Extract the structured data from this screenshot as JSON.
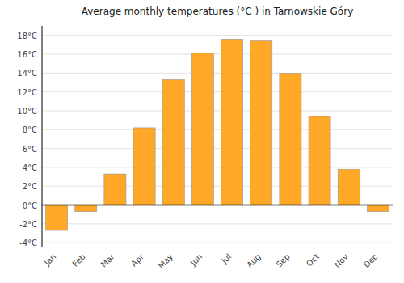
{
  "chart_data": {
    "type": "bar",
    "title": "Average monthly temperatures (°C ) in Tarnowskie Góry",
    "categories": [
      "Jan",
      "Feb",
      "Mar",
      "Apr",
      "May",
      "Jun",
      "Jul",
      "Aug",
      "Sep",
      "Oct",
      "Nov",
      "Dec"
    ],
    "values": [
      -2.7,
      -0.7,
      3.3,
      8.2,
      13.3,
      16.1,
      17.6,
      17.4,
      14.0,
      9.4,
      3.8,
      -0.7
    ],
    "color": "#FFA726",
    "ylim": [
      -4.5,
      19
    ],
    "yticks": [
      {
        "value": -4,
        "label": "-4°C"
      },
      {
        "value": -2,
        "label": "-2°C"
      },
      {
        "value": 0,
        "label": "0°C"
      },
      {
        "value": 2,
        "label": "2°C"
      },
      {
        "value": 4,
        "label": "4°C"
      },
      {
        "value": 6,
        "label": "6°C"
      },
      {
        "value": 8,
        "label": "8°C"
      },
      {
        "value": 10,
        "label": "10°C"
      },
      {
        "value": 12,
        "label": "12°C"
      },
      {
        "value": 14,
        "label": "14°C"
      },
      {
        "value": 16,
        "label": "16°C"
      },
      {
        "value": 18,
        "label": "18°C"
      }
    ],
    "grid": true
  }
}
